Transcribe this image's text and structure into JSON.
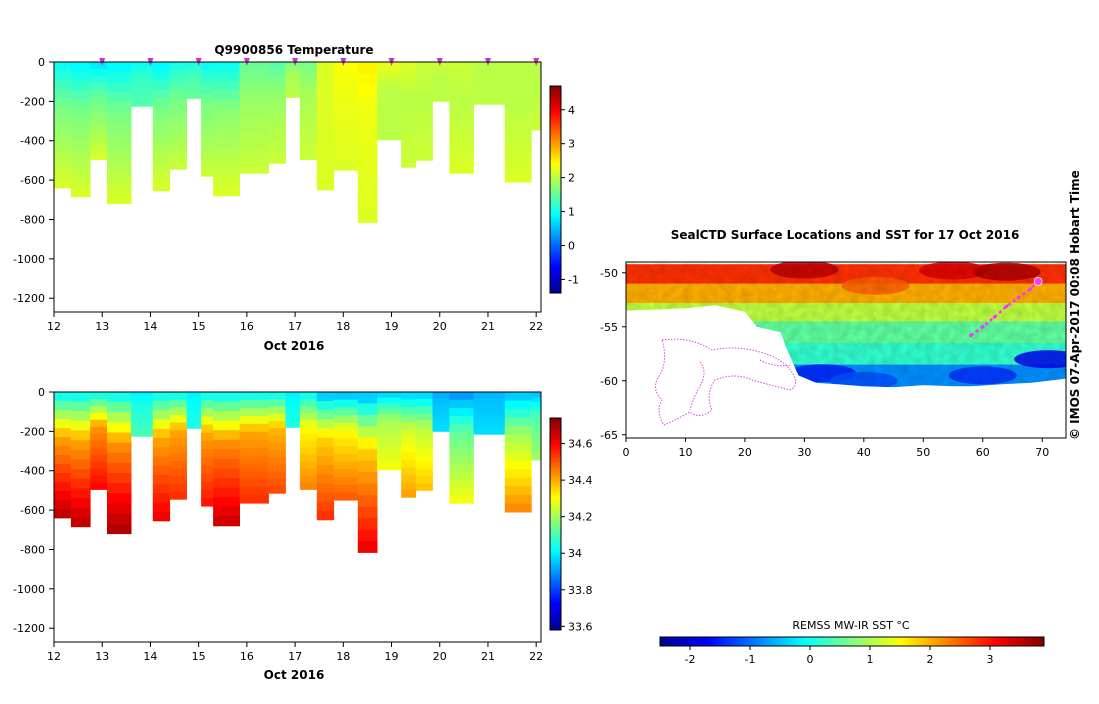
{
  "footer": "© IMOS 07-Apr-2017 00:08 Hobart Time",
  "colors": {
    "jet": [
      "#00008f",
      "#0000ff",
      "#007fff",
      "#00ffff",
      "#7fff7f",
      "#ffff00",
      "#ff7f00",
      "#ff0000",
      "#7f0000"
    ],
    "land_border": "#dd44dd",
    "track": "#ff33ff"
  },
  "chart_data": [
    {
      "type": "heatmap",
      "name": "temperature-profile",
      "title": "Q9900856  Temperature",
      "xlabel": "Oct 2016",
      "xlim": [
        12,
        22.1
      ],
      "ylim": [
        -1270,
        0
      ],
      "x_ticks": [
        12,
        13,
        14,
        15,
        16,
        17,
        18,
        19,
        20,
        21,
        22
      ],
      "y_ticks": [
        0,
        -200,
        -400,
        -600,
        -800,
        -1000,
        -1200
      ],
      "surface_markers": [
        13,
        14,
        15,
        16,
        17,
        18,
        19,
        20,
        21,
        22
      ],
      "colorbar": {
        "range": [
          -1.4,
          4.7
        ],
        "ticks": [
          -1,
          0,
          1,
          2,
          3,
          4
        ]
      },
      "profiles": [
        {
          "x0": 12.0,
          "x1": 12.35,
          "max_depth": 640,
          "surface": 0.9,
          "mid": 1.6,
          "deep": 2.2
        },
        {
          "x0": 12.35,
          "x1": 12.75,
          "max_depth": 685,
          "surface": 0.8,
          "mid": 1.6,
          "deep": 2.2
        },
        {
          "x0": 12.75,
          "x1": 13.1,
          "max_depth": 495,
          "surface": 0.7,
          "mid": 1.5,
          "deep": 2.2
        },
        {
          "x0": 13.1,
          "x1": 13.6,
          "max_depth": 720,
          "surface": 0.8,
          "mid": 1.6,
          "deep": 2.2
        },
        {
          "x0": 13.6,
          "x1": 14.05,
          "max_depth": 225,
          "surface": 0.9,
          "mid": 1.2,
          "deep": 1.4
        },
        {
          "x0": 14.05,
          "x1": 14.4,
          "max_depth": 655,
          "surface": 0.8,
          "mid": 1.6,
          "deep": 2.2
        },
        {
          "x0": 14.4,
          "x1": 14.75,
          "max_depth": 545,
          "surface": 1.0,
          "mid": 1.6,
          "deep": 2.1
        },
        {
          "x0": 14.75,
          "x1": 15.05,
          "max_depth": 185,
          "surface": 1.0,
          "mid": 1.3,
          "deep": 1.5
        },
        {
          "x0": 15.05,
          "x1": 15.3,
          "max_depth": 580,
          "surface": 0.9,
          "mid": 1.6,
          "deep": 2.1
        },
        {
          "x0": 15.3,
          "x1": 15.85,
          "max_depth": 680,
          "surface": 0.9,
          "mid": 1.7,
          "deep": 2.2
        },
        {
          "x0": 15.85,
          "x1": 16.45,
          "max_depth": 565,
          "surface": 1.5,
          "mid": 1.8,
          "deep": 2.1
        },
        {
          "x0": 16.45,
          "x1": 16.8,
          "max_depth": 515,
          "surface": 1.4,
          "mid": 1.8,
          "deep": 2.1
        },
        {
          "x0": 16.8,
          "x1": 17.1,
          "max_depth": 180,
          "surface": 1.6,
          "mid": 1.9,
          "deep": 2.0
        },
        {
          "x0": 17.1,
          "x1": 17.45,
          "max_depth": 495,
          "surface": 1.6,
          "mid": 1.9,
          "deep": 2.1
        },
        {
          "x0": 17.45,
          "x1": 17.8,
          "max_depth": 650,
          "surface": 2.2,
          "mid": 2.2,
          "deep": 2.2
        },
        {
          "x0": 17.8,
          "x1": 18.3,
          "max_depth": 550,
          "surface": 2.4,
          "mid": 2.3,
          "deep": 2.2
        },
        {
          "x0": 18.3,
          "x1": 18.7,
          "max_depth": 815,
          "surface": 2.5,
          "mid": 2.3,
          "deep": 2.2
        },
        {
          "x0": 18.7,
          "x1": 19.2,
          "max_depth": 395,
          "surface": 2.3,
          "mid": 2.0,
          "deep": 2.0
        },
        {
          "x0": 19.2,
          "x1": 19.5,
          "max_depth": 535,
          "surface": 2.2,
          "mid": 2.0,
          "deep": 2.1
        },
        {
          "x0": 19.5,
          "x1": 19.85,
          "max_depth": 500,
          "surface": 2.1,
          "mid": 2.0,
          "deep": 2.1
        },
        {
          "x0": 19.85,
          "x1": 20.2,
          "max_depth": 200,
          "surface": 2.1,
          "mid": 2.0,
          "deep": 2.0
        },
        {
          "x0": 20.2,
          "x1": 20.7,
          "max_depth": 565,
          "surface": 2.1,
          "mid": 2.0,
          "deep": 2.2
        },
        {
          "x0": 20.7,
          "x1": 21.35,
          "max_depth": 215,
          "surface": 2.0,
          "mid": 2.0,
          "deep": 2.0
        },
        {
          "x0": 21.35,
          "x1": 21.9,
          "max_depth": 610,
          "surface": 2.0,
          "mid": 2.0,
          "deep": 2.2
        },
        {
          "x0": 21.9,
          "x1": 22.1,
          "max_depth": 345,
          "surface": 2.0,
          "mid": 2.0,
          "deep": 2.1
        }
      ]
    },
    {
      "type": "heatmap",
      "name": "salinity-profile",
      "title": "",
      "xlabel": "Oct 2016",
      "xlim": [
        12,
        22.1
      ],
      "ylim": [
        -1270,
        0
      ],
      "x_ticks": [
        12,
        13,
        14,
        15,
        16,
        17,
        18,
        19,
        20,
        21,
        22
      ],
      "y_ticks": [
        0,
        -200,
        -400,
        -600,
        -800,
        -1000,
        -1200
      ],
      "colorbar": {
        "range": [
          33.58,
          34.74
        ],
        "ticks": [
          33.6,
          33.8,
          34,
          34.2,
          34.4,
          34.6
        ]
      },
      "profiles": [
        {
          "x0": 12.0,
          "x1": 12.35,
          "max_depth": 640,
          "surface": 34.0,
          "mid": 34.4,
          "deep": 34.68
        },
        {
          "x0": 12.35,
          "x1": 12.75,
          "max_depth": 685,
          "surface": 34.0,
          "mid": 34.4,
          "deep": 34.68
        },
        {
          "x0": 12.75,
          "x1": 13.1,
          "max_depth": 495,
          "surface": 34.0,
          "mid": 34.42,
          "deep": 34.6
        },
        {
          "x0": 13.1,
          "x1": 13.6,
          "max_depth": 720,
          "surface": 34.0,
          "mid": 34.42,
          "deep": 34.7
        },
        {
          "x0": 13.6,
          "x1": 14.05,
          "max_depth": 225,
          "surface": 34.0,
          "mid": 34.05,
          "deep": 34.1
        },
        {
          "x0": 14.05,
          "x1": 14.4,
          "max_depth": 655,
          "surface": 34.0,
          "mid": 34.4,
          "deep": 34.62
        },
        {
          "x0": 14.4,
          "x1": 14.75,
          "max_depth": 545,
          "surface": 34.0,
          "mid": 34.4,
          "deep": 34.55
        },
        {
          "x0": 14.75,
          "x1": 15.05,
          "max_depth": 185,
          "surface": 34.0,
          "mid": 34.02,
          "deep": 34.05
        },
        {
          "x0": 15.05,
          "x1": 15.3,
          "max_depth": 580,
          "surface": 34.0,
          "mid": 34.4,
          "deep": 34.58
        },
        {
          "x0": 15.3,
          "x1": 15.85,
          "max_depth": 680,
          "surface": 34.0,
          "mid": 34.42,
          "deep": 34.66
        },
        {
          "x0": 15.85,
          "x1": 16.45,
          "max_depth": 565,
          "surface": 34.0,
          "mid": 34.4,
          "deep": 34.55
        },
        {
          "x0": 16.45,
          "x1": 16.8,
          "max_depth": 515,
          "surface": 34.0,
          "mid": 34.38,
          "deep": 34.52
        },
        {
          "x0": 16.8,
          "x1": 17.1,
          "max_depth": 180,
          "surface": 34.0,
          "mid": 34.02,
          "deep": 34.05
        },
        {
          "x0": 17.1,
          "x1": 17.45,
          "max_depth": 495,
          "surface": 34.0,
          "mid": 34.3,
          "deep": 34.45
        },
        {
          "x0": 17.45,
          "x1": 17.8,
          "max_depth": 650,
          "surface": 33.92,
          "mid": 34.35,
          "deep": 34.55
        },
        {
          "x0": 17.8,
          "x1": 18.3,
          "max_depth": 550,
          "surface": 33.92,
          "mid": 34.3,
          "deep": 34.5
        },
        {
          "x0": 18.3,
          "x1": 18.7,
          "max_depth": 815,
          "surface": 33.92,
          "mid": 34.35,
          "deep": 34.62
        },
        {
          "x0": 18.7,
          "x1": 19.2,
          "max_depth": 395,
          "surface": 33.95,
          "mid": 34.2,
          "deep": 34.3
        },
        {
          "x0": 19.2,
          "x1": 19.5,
          "max_depth": 535,
          "surface": 33.95,
          "mid": 34.25,
          "deep": 34.42
        },
        {
          "x0": 19.5,
          "x1": 19.85,
          "max_depth": 500,
          "surface": 33.95,
          "mid": 34.22,
          "deep": 34.38
        },
        {
          "x0": 19.85,
          "x1": 20.2,
          "max_depth": 200,
          "surface": 33.92,
          "mid": 33.95,
          "deep": 33.98
        },
        {
          "x0": 20.2,
          "x1": 20.7,
          "max_depth": 565,
          "surface": 33.88,
          "mid": 34.12,
          "deep": 34.3
        },
        {
          "x0": 20.7,
          "x1": 21.35,
          "max_depth": 215,
          "surface": 33.93,
          "mid": 33.95,
          "deep": 33.98
        },
        {
          "x0": 21.35,
          "x1": 21.9,
          "max_depth": 610,
          "surface": 33.93,
          "mid": 34.2,
          "deep": 34.45
        },
        {
          "x0": 21.9,
          "x1": 22.1,
          "max_depth": 345,
          "surface": 33.93,
          "mid": 34.1,
          "deep": 34.2
        }
      ]
    },
    {
      "type": "heatmap",
      "name": "sst-map",
      "title": "SealCTD Surface Locations and SST for 17 Oct 2016",
      "xlabel": "",
      "xlim": [
        0,
        74
      ],
      "ylim": [
        -65.3,
        -49
      ],
      "x_ticks": [
        0,
        10,
        20,
        30,
        40,
        50,
        60,
        70
      ],
      "y_ticks": [
        -50,
        -55,
        -60,
        -65
      ],
      "colorbar": {
        "label": "REMSS MW-IR SST °C",
        "range": [
          -2.5,
          3.9
        ],
        "ticks": [
          -2,
          -1,
          0,
          1,
          2,
          3
        ]
      },
      "ocean_bands": [
        {
          "lat_top": -49.2,
          "lat_bottom": -51,
          "sst": 2.8
        },
        {
          "lat_top": -51,
          "lat_bottom": -52.8,
          "sst": 2.0
        },
        {
          "lat_top": -52.8,
          "lat_bottom": -54.5,
          "sst": 1.1
        },
        {
          "lat_top": -54.5,
          "lat_bottom": -56.5,
          "sst": 0.5
        },
        {
          "lat_top": -56.5,
          "lat_bottom": -58.5,
          "sst": 0.2
        },
        {
          "lat_top": -58.5,
          "lat_bottom": -60.5,
          "sst": -0.8
        }
      ],
      "warm_patches": [
        {
          "lon": 30,
          "lat": -49.7,
          "sst": 3.5
        },
        {
          "lon": 55,
          "lat": -49.8,
          "sst": 3.3
        },
        {
          "lon": 64,
          "lat": -49.9,
          "sst": 3.6
        },
        {
          "lon": 42,
          "lat": -51.2,
          "sst": 2.5
        }
      ],
      "cold_patches": [
        {
          "lon": 33,
          "lat": -59.3,
          "sst": -1.5
        },
        {
          "lon": 40,
          "lat": -60.0,
          "sst": -1.2
        },
        {
          "lon": 60,
          "lat": -59.5,
          "sst": -1.4
        },
        {
          "lon": 71,
          "lat": -58.0,
          "sst": -1.8
        }
      ],
      "coast_lon": [
        0,
        5,
        10,
        15,
        20,
        22,
        26,
        27,
        29,
        32,
        35,
        40,
        45,
        50,
        55,
        58,
        61,
        64,
        68,
        71,
        74
      ],
      "coast_lat": [
        -53.5,
        -53.4,
        -53.3,
        -53.0,
        -53.6,
        -55.0,
        -55.5,
        -57.0,
        -59.5,
        -60.2,
        -60.3,
        -60.5,
        -60.6,
        -60.4,
        -60.5,
        -60.5,
        -60.4,
        -60.3,
        -60.2,
        -60.0,
        -59.8
      ],
      "seal_track": {
        "lon": [
          58,
          60,
          62,
          64,
          66,
          68,
          69.3
        ],
        "lat": [
          -55.8,
          -55.0,
          -54.1,
          -53.1,
          -52.3,
          -51.5,
          -50.8
        ],
        "current_marker": {
          "lon": 69.3,
          "lat": -50.8
        }
      }
    }
  ]
}
